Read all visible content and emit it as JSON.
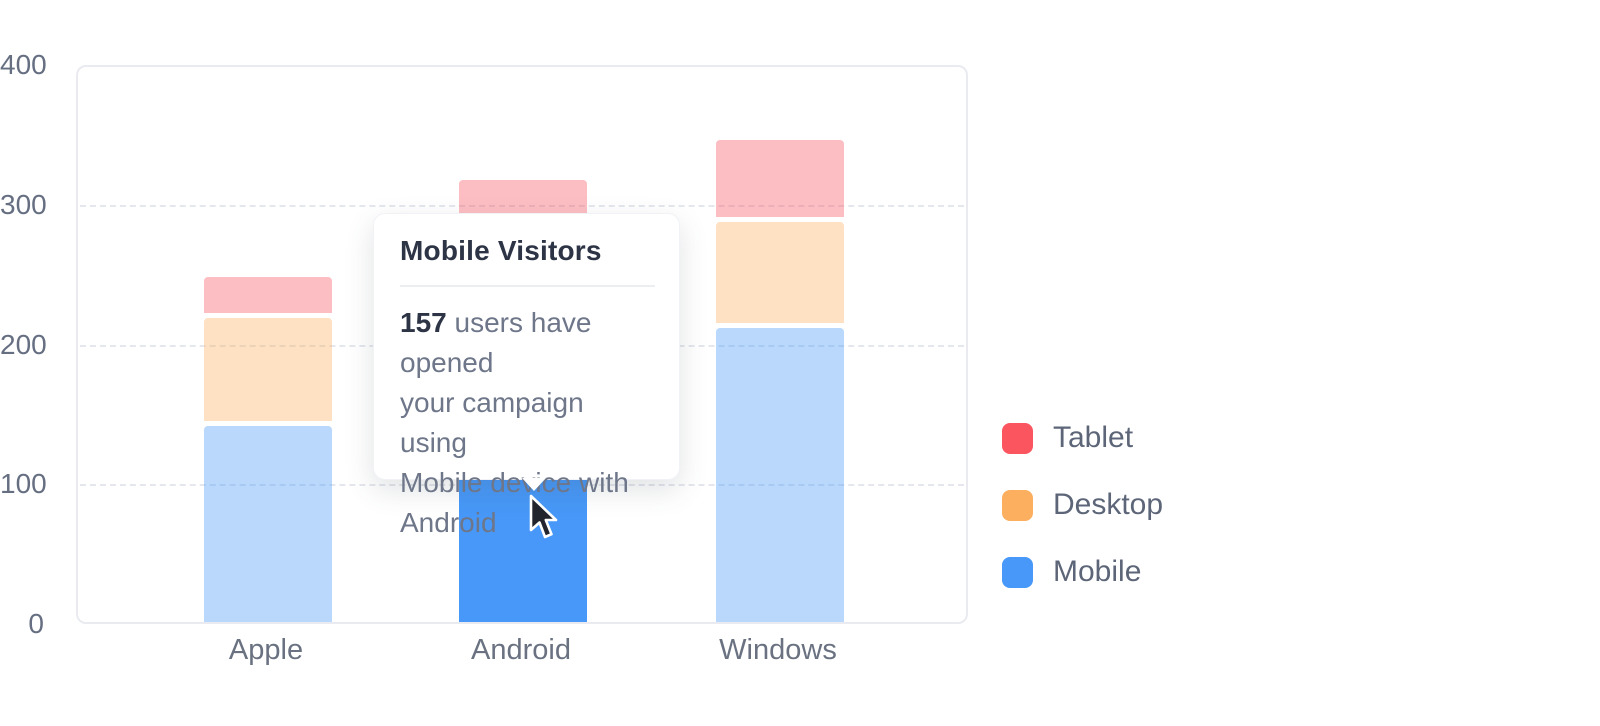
{
  "chart_data": {
    "type": "bar",
    "stacked": true,
    "title": "",
    "xlabel": "",
    "ylabel": "",
    "categories": [
      "Apple",
      "Android",
      "Windows"
    ],
    "series": [
      {
        "name": "Mobile",
        "color": "#4798f8",
        "values": [
          142,
          157,
          212
        ]
      },
      {
        "name": "Desktop",
        "color": "#fbaf5f",
        "values": [
          77,
          100,
          76
        ]
      },
      {
        "name": "Tablet",
        "color": "#fb5560",
        "values": [
          28,
          59,
          57
        ]
      }
    ],
    "ylim": [
      0,
      400
    ],
    "y_ticks": [
      400,
      300,
      200,
      100,
      0
    ],
    "grid": "dashed-horizontal",
    "inactive_series_opacity": 0.38,
    "legend_position": "right",
    "legend": [
      {
        "label": "Tablet",
        "color": "#fb5560",
        "series_index": 2
      },
      {
        "label": "Desktop",
        "color": "#fbaf5f",
        "series_index": 1
      },
      {
        "label": "Mobile",
        "color": "#4798f8",
        "series_index": 0
      }
    ],
    "active_segment": {
      "category": "Android",
      "series": "Mobile",
      "value": 157
    }
  },
  "tooltip": {
    "title": "Mobile Visitors",
    "count": "157",
    "line1_rest": " users have opened",
    "line2": "your campaign using",
    "line3": "Mobile device with",
    "line4": "Android"
  }
}
